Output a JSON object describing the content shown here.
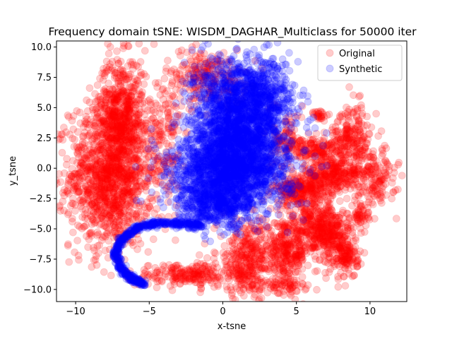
{
  "chart_data": {
    "type": "scatter",
    "title": "Frequency domain tSNE: WISDM_DAGHAR_Multiclass for 50000 iter",
    "xlabel": "x-tsne",
    "ylabel": "y_tsne",
    "xlim": [
      -11.3,
      12.5
    ],
    "ylim": [
      -11.0,
      10.5
    ],
    "xticks": [
      -10,
      -5,
      0,
      5,
      10
    ],
    "xtick_labels": [
      "−10",
      "−5",
      "0",
      "5",
      "10"
    ],
    "yticks": [
      -10.0,
      -7.5,
      -5.0,
      -2.5,
      0.0,
      2.5,
      5.0,
      7.5,
      10.0
    ],
    "ytick_labels": [
      "−10.0",
      "−7.5",
      "−5.0",
      "−2.5",
      "0.0",
      "2.5",
      "5.0",
      "7.5",
      "10.0"
    ],
    "legend_position": "top-right",
    "grid": false,
    "series": [
      {
        "name": "Original",
        "color": "#ff0000",
        "alpha": 0.2,
        "clusters": [
          {
            "cx": -7.6,
            "cy": -0.6,
            "sx": 1.4,
            "sy": 3.0,
            "n": 1300
          },
          {
            "cx": -6.9,
            "cy": 4.8,
            "sx": 0.8,
            "sy": 2.2,
            "n": 500
          },
          {
            "cx": -4.0,
            "cy": 2.0,
            "sx": 0.6,
            "sy": 3.0,
            "n": 160
          },
          {
            "cx": -1.2,
            "cy": 7.6,
            "sx": 1.4,
            "sy": 1.1,
            "n": 220
          },
          {
            "cx": -2.3,
            "cy": -8.8,
            "sx": 1.8,
            "sy": 0.5,
            "n": 220
          },
          {
            "cx": 1.8,
            "cy": -7.5,
            "sx": 1.1,
            "sy": 1.6,
            "n": 380
          },
          {
            "cx": 4.3,
            "cy": -7.1,
            "sx": 0.7,
            "sy": 1.2,
            "n": 260
          },
          {
            "cx": 6.2,
            "cy": -4.7,
            "sx": 1.0,
            "sy": 1.1,
            "n": 300
          },
          {
            "cx": 7.3,
            "cy": -5.6,
            "sx": 0.8,
            "sy": 1.1,
            "n": 240
          },
          {
            "cx": 8.4,
            "cy": -7.3,
            "sx": 0.4,
            "sy": 0.9,
            "n": 120
          },
          {
            "cx": 5.4,
            "cy": -1.9,
            "sx": 1.0,
            "sy": 0.6,
            "n": 260
          },
          {
            "cx": 7.4,
            "cy": -0.6,
            "sx": 1.0,
            "sy": 0.6,
            "n": 240
          },
          {
            "cx": 8.7,
            "cy": 2.4,
            "sx": 0.8,
            "sy": 1.4,
            "n": 260
          },
          {
            "cx": 10.2,
            "cy": -0.9,
            "sx": 0.8,
            "sy": 1.2,
            "n": 160
          },
          {
            "cx": 6.2,
            "cy": 1.5,
            "sx": 0.9,
            "sy": 0.6,
            "n": 160
          },
          {
            "cx": 4.4,
            "cy": 2.5,
            "sx": 0.5,
            "sy": 1.2,
            "n": 90
          },
          {
            "cx": 9.4,
            "cy": -3.8,
            "sx": 0.3,
            "sy": 0.6,
            "n": 50
          },
          {
            "cx": 6.6,
            "cy": 4.3,
            "sx": 0.2,
            "sy": 0.3,
            "n": 25
          },
          {
            "cx": 4.0,
            "cy": -9.8,
            "sx": 1.2,
            "sy": 0.3,
            "n": 60
          }
        ]
      },
      {
        "name": "Synthetic",
        "color": "#0000ff",
        "alpha": 0.2,
        "clusters": [
          {
            "cx": 1.0,
            "cy": 4.2,
            "sx": 1.5,
            "sy": 2.5,
            "n": 1600
          },
          {
            "cx": 0.6,
            "cy": 0.0,
            "sx": 2.0,
            "sy": 1.7,
            "n": 1600
          },
          {
            "cx": -0.4,
            "cy": -3.0,
            "sx": 1.4,
            "sy": 1.0,
            "n": 500
          },
          {
            "cx": 3.0,
            "cy": 5.8,
            "sx": 0.9,
            "sy": 1.4,
            "n": 300
          }
        ],
        "tail": [
          [
            -1.4,
            -4.7
          ],
          [
            -3.0,
            -4.6
          ],
          [
            -4.6,
            -4.5
          ],
          [
            -5.8,
            -4.9
          ],
          [
            -6.8,
            -5.8
          ],
          [
            -7.3,
            -7.0
          ],
          [
            -6.9,
            -8.4
          ],
          [
            -6.1,
            -9.2
          ],
          [
            -5.3,
            -9.6
          ]
        ]
      }
    ]
  }
}
